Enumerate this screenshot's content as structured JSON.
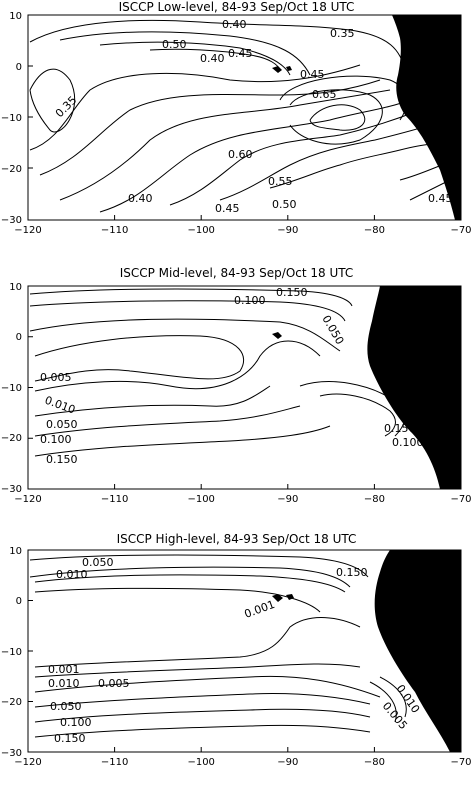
{
  "chart_data": [
    {
      "type": "contour",
      "title": "ISCCP Low-level, 84-93 Sep/Oct 18 UTC",
      "xlabel": "",
      "ylabel": "",
      "xlim": [
        -120,
        -70
      ],
      "ylim": [
        -30,
        10
      ],
      "xticks": [
        "−120",
        "−110",
        "−100",
        "−90",
        "−80",
        "−70"
      ],
      "yticks": [
        "10",
        "0",
        "−10",
        "−20",
        "−30"
      ],
      "contour_labels": [
        "0.40",
        "0.50",
        "0.40",
        "0.45",
        "0.35",
        "0.35",
        "0.45",
        "0.65",
        "0.60",
        "0.55",
        "0.50",
        "0.45",
        "0.40",
        "0.45"
      ],
      "land_color": "#000000"
    },
    {
      "type": "contour",
      "title": "ISCCP Mid-level, 84-93 Sep/Oct 18 UTC",
      "xlabel": "",
      "ylabel": "",
      "xlim": [
        -120,
        -70
      ],
      "ylim": [
        -30,
        10
      ],
      "xticks": [
        "−120",
        "−110",
        "−100",
        "−90",
        "−80",
        "−70"
      ],
      "yticks": [
        "10",
        "0",
        "−10",
        "−20",
        "−30"
      ],
      "contour_labels": [
        "0.150",
        "0.100",
        "0.050",
        "0.005",
        "0.010",
        "0.050",
        "0.100",
        "0.150",
        "0.150",
        "0.100"
      ],
      "land_color": "#000000"
    },
    {
      "type": "contour",
      "title": "ISCCP High-level, 84-93 Sep/Oct 18 UTC",
      "xlabel": "",
      "ylabel": "",
      "xlim": [
        -120,
        -70
      ],
      "ylim": [
        -30,
        10
      ],
      "xticks": [
        "−120",
        "−110",
        "−100",
        "−90",
        "−80",
        "−70"
      ],
      "yticks": [
        "10",
        "0",
        "−10",
        "−20",
        "−30"
      ],
      "contour_labels": [
        "0.050",
        "0.010",
        "0.150",
        "0.001",
        "0.001",
        "0.005",
        "0.010",
        "0.050",
        "0.100",
        "0.150",
        "0.005",
        "0.010"
      ],
      "land_color": "#000000"
    }
  ]
}
